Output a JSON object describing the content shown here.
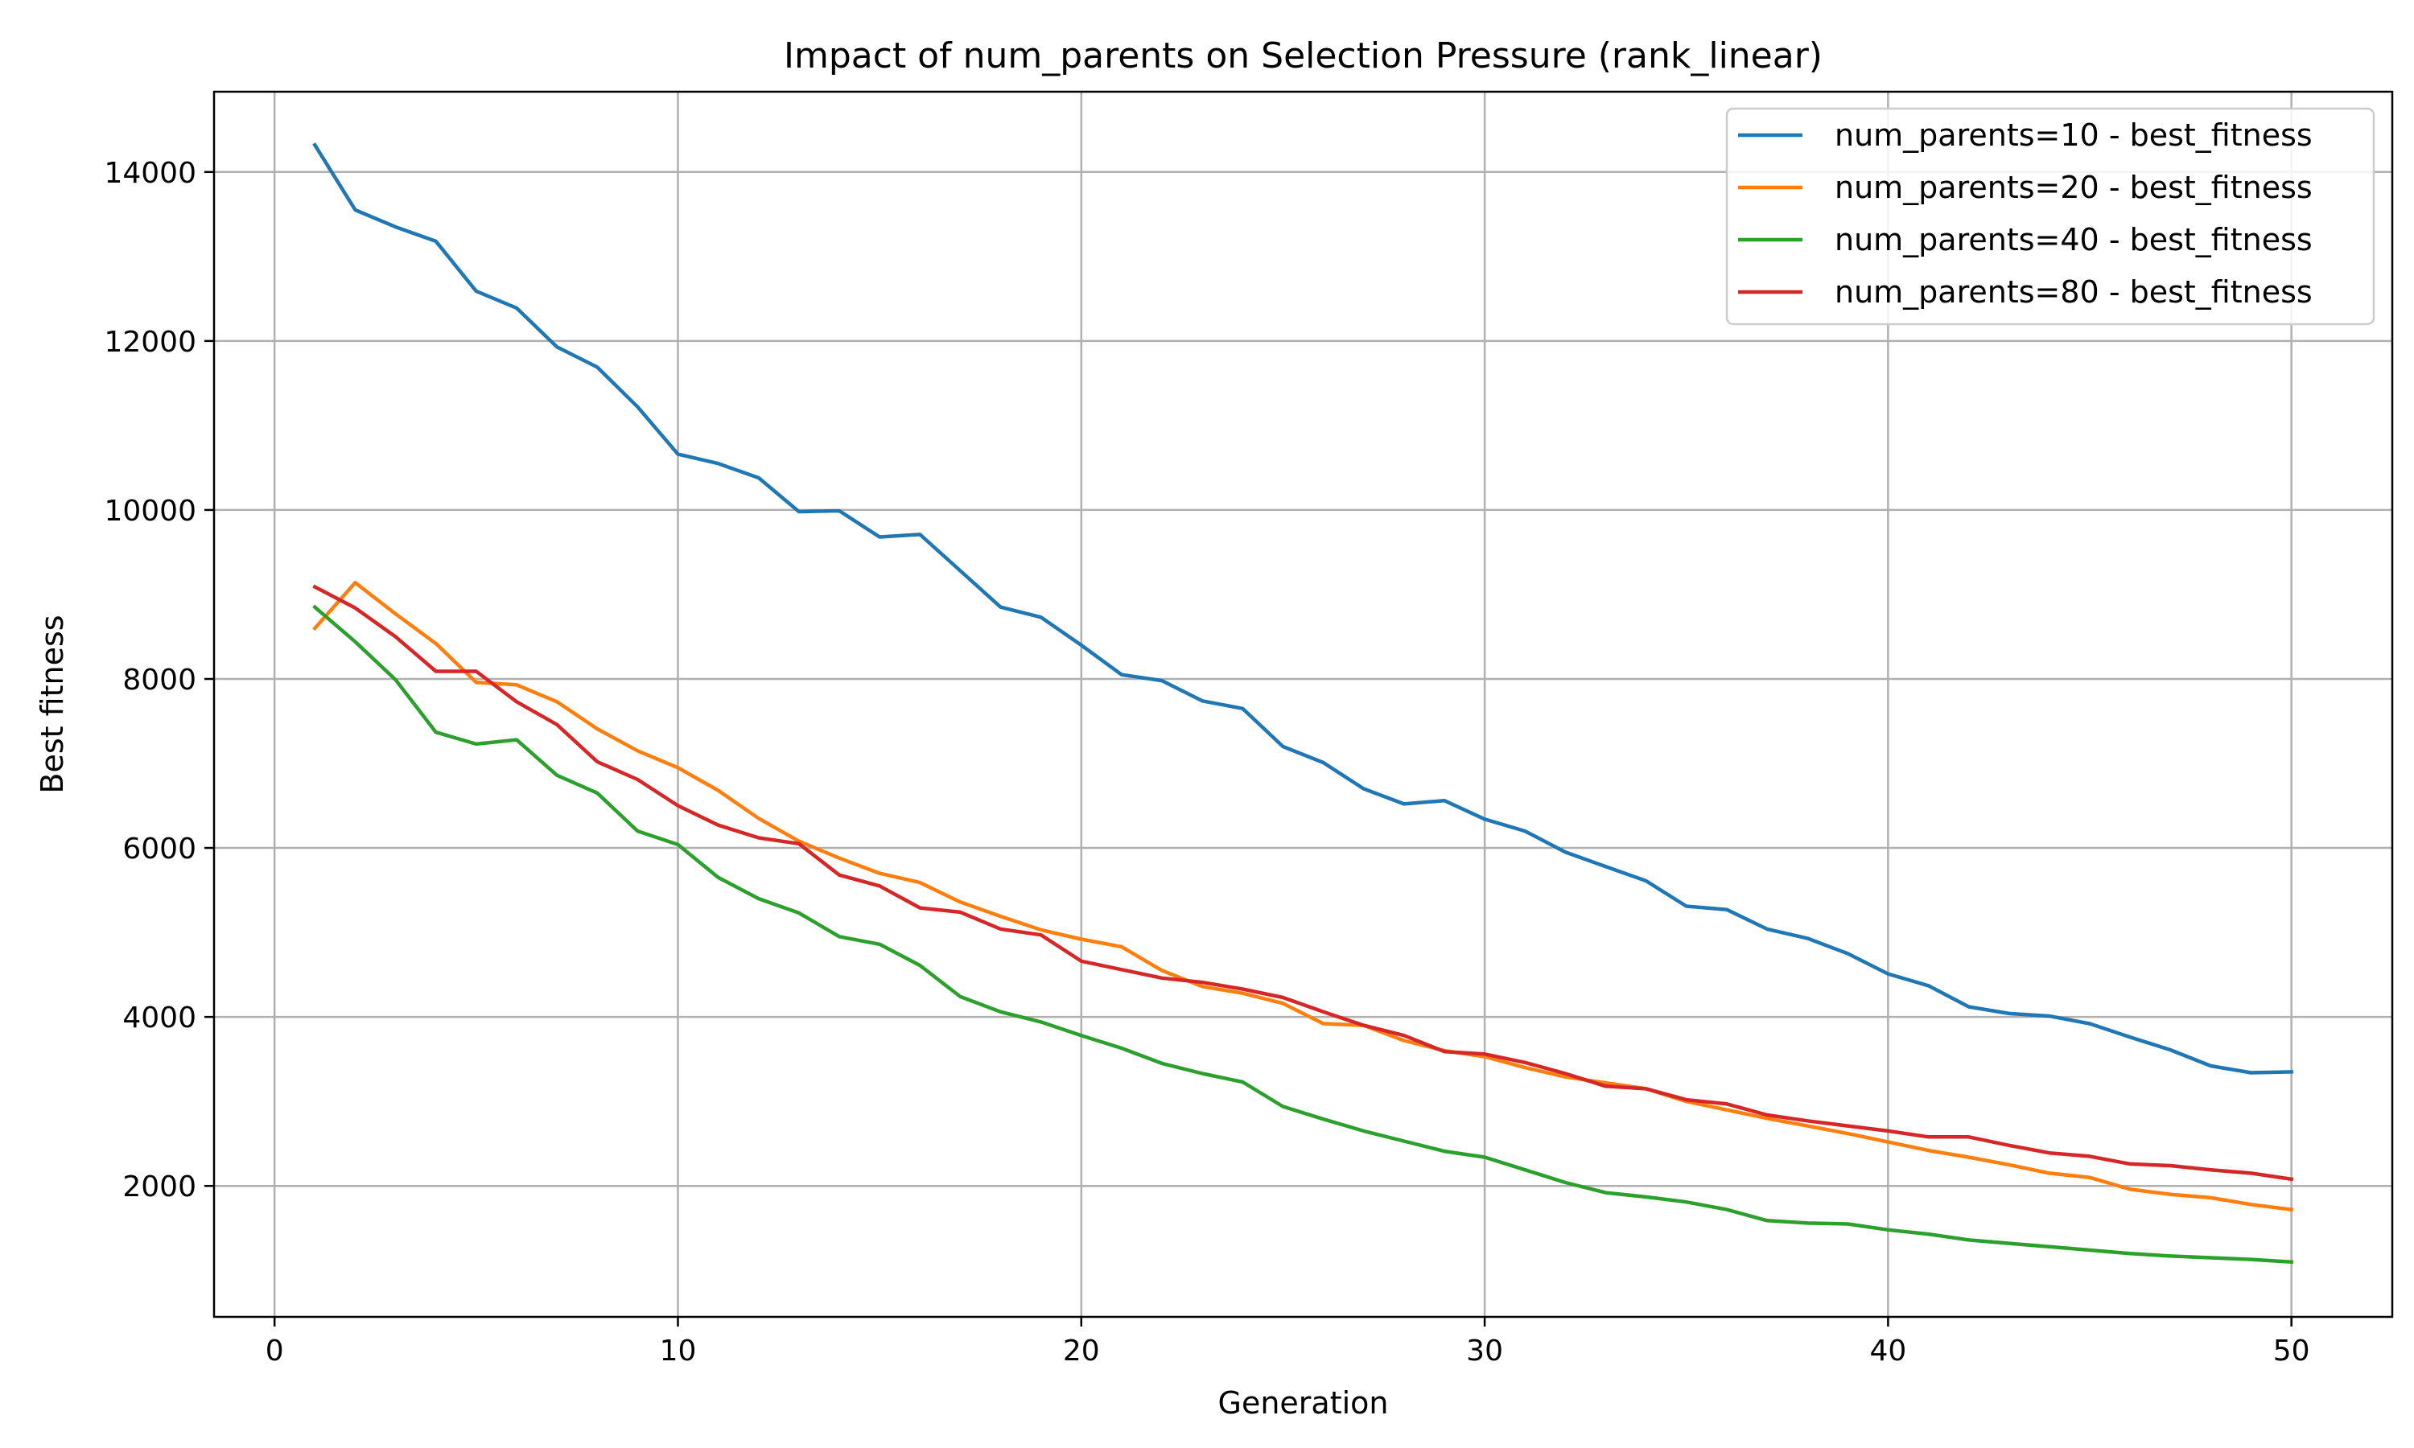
{
  "chart_data": {
    "type": "line",
    "title": "Impact of num_parents on Selection Pressure (rank_linear)",
    "xlabel": "Generation",
    "ylabel": "Best fitness",
    "xlim": [
      -1.5,
      52.5
    ],
    "ylim": [
      450,
      14950
    ],
    "xticks": [
      0,
      10,
      20,
      30,
      40,
      50
    ],
    "yticks": [
      2000,
      4000,
      6000,
      8000,
      10000,
      12000,
      14000
    ],
    "grid": true,
    "legend_position": "top-right",
    "x": [
      1,
      2,
      3,
      4,
      5,
      6,
      7,
      8,
      9,
      10,
      11,
      12,
      13,
      14,
      15,
      16,
      17,
      18,
      19,
      20,
      21,
      22,
      23,
      24,
      25,
      26,
      27,
      28,
      29,
      30,
      31,
      32,
      33,
      34,
      35,
      36,
      37,
      38,
      39,
      40,
      41,
      42,
      43,
      44,
      45,
      46,
      47,
      48,
      49,
      50
    ],
    "series": [
      {
        "name": "num_parents=10 - best_fitness",
        "color": "#1f77b4",
        "values": [
          14320,
          13550,
          13350,
          13180,
          12590,
          12390,
          11930,
          11690,
          11220,
          10660,
          10550,
          10380,
          9980,
          9990,
          9680,
          9710,
          9280,
          8850,
          8730,
          8400,
          8050,
          7980,
          7740,
          7650,
          7200,
          7010,
          6700,
          6520,
          6560,
          6340,
          6200,
          5950,
          5780,
          5610,
          5310,
          5270,
          5040,
          4930,
          4750,
          4510,
          4370,
          4120,
          4040,
          4010,
          3920,
          3760,
          3610,
          3420,
          3340,
          3350
        ]
      },
      {
        "name": "num_parents=20 - best_fitness",
        "color": "#ff7f0e",
        "values": [
          8600,
          9140,
          8770,
          8420,
          7960,
          7930,
          7730,
          7410,
          7150,
          6950,
          6680,
          6350,
          6080,
          5880,
          5700,
          5590,
          5360,
          5190,
          5030,
          4920,
          4830,
          4550,
          4360,
          4280,
          4160,
          3920,
          3900,
          3720,
          3600,
          3530,
          3400,
          3290,
          3220,
          3150,
          3000,
          2900,
          2800,
          2710,
          2620,
          2520,
          2420,
          2340,
          2250,
          2150,
          2100,
          1960,
          1900,
          1860,
          1780,
          1720
        ]
      },
      {
        "name": "num_parents=40 - best_fitness",
        "color": "#2ca02c",
        "values": [
          8850,
          8440,
          7990,
          7370,
          7230,
          7280,
          6860,
          6650,
          6200,
          6040,
          5650,
          5400,
          5230,
          4950,
          4860,
          4610,
          4240,
          4060,
          3940,
          3780,
          3630,
          3450,
          3330,
          3230,
          2940,
          2790,
          2650,
          2530,
          2410,
          2340,
          2190,
          2040,
          1920,
          1870,
          1810,
          1720,
          1590,
          1560,
          1550,
          1480,
          1430,
          1360,
          1320,
          1280,
          1240,
          1200,
          1170,
          1150,
          1130,
          1100
        ]
      },
      {
        "name": "num_parents=80 - best_fitness",
        "color": "#d62728",
        "values": [
          9090,
          8840,
          8500,
          8090,
          8090,
          7730,
          7460,
          7020,
          6810,
          6500,
          6270,
          6120,
          6050,
          5680,
          5550,
          5290,
          5240,
          5040,
          4970,
          4660,
          4560,
          4460,
          4410,
          4330,
          4230,
          4060,
          3900,
          3780,
          3590,
          3560,
          3460,
          3330,
          3180,
          3150,
          3020,
          2970,
          2840,
          2770,
          2710,
          2650,
          2580,
          2580,
          2480,
          2390,
          2350,
          2260,
          2240,
          2190,
          2150,
          2080
        ]
      }
    ]
  }
}
